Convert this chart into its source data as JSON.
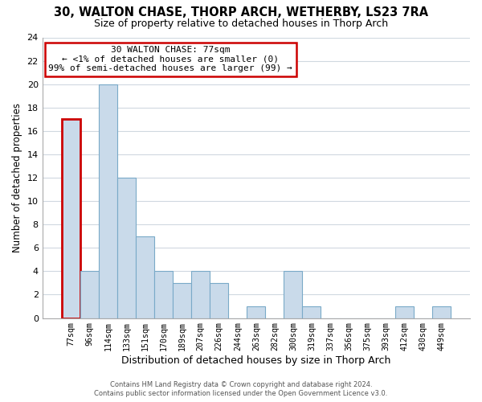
{
  "title": "30, WALTON CHASE, THORP ARCH, WETHERBY, LS23 7RA",
  "subtitle": "Size of property relative to detached houses in Thorp Arch",
  "xlabel": "Distribution of detached houses by size in Thorp Arch",
  "ylabel": "Number of detached properties",
  "bar_color": "#c9daea",
  "bar_edge_color": "#7aaac8",
  "bin_labels": [
    "77sqm",
    "96sqm",
    "114sqm",
    "133sqm",
    "151sqm",
    "170sqm",
    "189sqm",
    "207sqm",
    "226sqm",
    "244sqm",
    "263sqm",
    "282sqm",
    "300sqm",
    "319sqm",
    "337sqm",
    "356sqm",
    "375sqm",
    "393sqm",
    "412sqm",
    "430sqm",
    "449sqm"
  ],
  "bar_heights": [
    17,
    4,
    20,
    12,
    7,
    4,
    3,
    4,
    3,
    0,
    1,
    0,
    4,
    1,
    0,
    0,
    0,
    0,
    1,
    0,
    1
  ],
  "ylim": [
    0,
    24
  ],
  "yticks": [
    0,
    2,
    4,
    6,
    8,
    10,
    12,
    14,
    16,
    18,
    20,
    22,
    24
  ],
  "annotation_title": "30 WALTON CHASE: 77sqm",
  "annotation_line1": "← <1% of detached houses are smaller (0)",
  "annotation_line2": "99% of semi-detached houses are larger (99) →",
  "annotation_box_color": "#ffffff",
  "annotation_box_edge_color": "#cc0000",
  "highlight_bar_index": 0,
  "highlight_bar_edge_color": "#cc0000",
  "footer_line1": "Contains HM Land Registry data © Crown copyright and database right 2024.",
  "footer_line2": "Contains public sector information licensed under the Open Government Licence v3.0.",
  "background_color": "#ffffff",
  "grid_color": "#d0d8e0"
}
